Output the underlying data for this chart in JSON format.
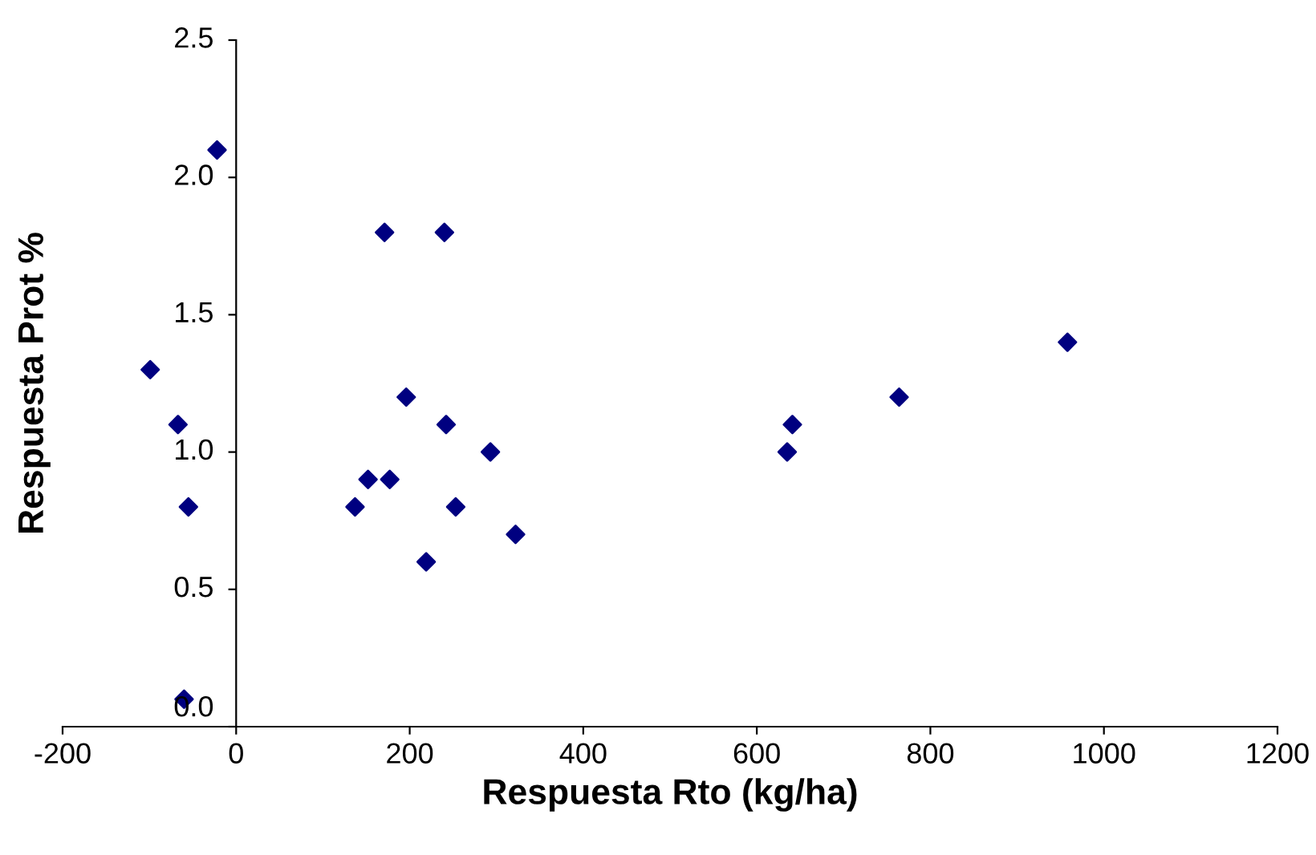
{
  "chart_data": {
    "type": "scatter",
    "xlabel": "Respuesta Rto (kg/ha)",
    "ylabel": "Respuesta Prot %",
    "series": [
      {
        "color": "#000080",
        "x": [
          -22,
          -99,
          -67,
          -55,
          -60,
          171,
          240,
          196,
          242,
          293,
          152,
          177,
          137,
          253,
          322,
          219,
          641,
          635,
          764,
          958
        ],
        "values": [
          2.1,
          1.3,
          1.1,
          0.8,
          0.1,
          1.8,
          1.8,
          1.2,
          1.1,
          1.0,
          0.9,
          0.9,
          0.8,
          0.8,
          0.7,
          0.6,
          1.1,
          1.0,
          1.2,
          1.4
        ]
      }
    ],
    "xlim": [
      -200,
      1200
    ],
    "xticks": [
      -200,
      0,
      200,
      400,
      600,
      800,
      1000,
      1200
    ],
    "ylim": [
      0,
      2.5
    ],
    "yticks": [
      {
        "value": 0,
        "label": "0.0"
      },
      {
        "value": 0.5,
        "label": "0.5"
      },
      {
        "value": 1.0,
        "label": "1.0"
      },
      {
        "value": 1.5,
        "label": "1.5"
      },
      {
        "value": 2.0,
        "label": "2.0"
      },
      {
        "value": 2.5,
        "label": "2.5"
      }
    ],
    "marker": "diamond",
    "grid": false,
    "legend": false
  }
}
